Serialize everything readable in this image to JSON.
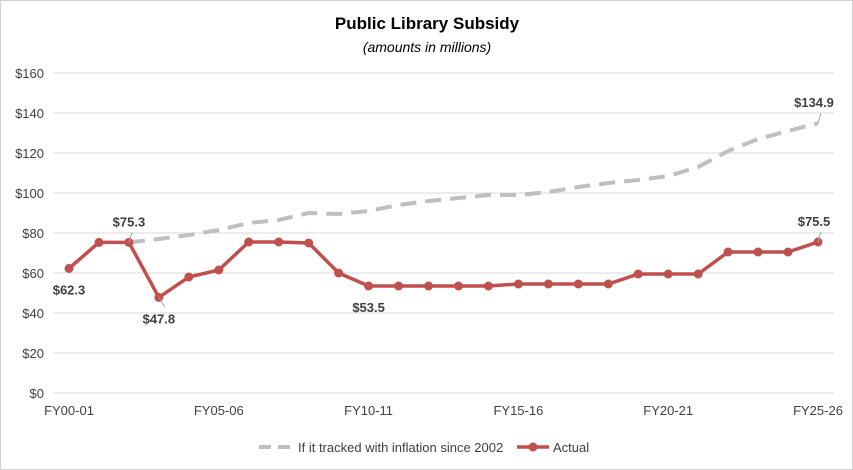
{
  "chart_data": {
    "type": "line",
    "title": "Public Library Subsidy",
    "subtitle": "(amounts in millions)",
    "xlabel": "",
    "ylabel": "",
    "ylim": [
      0,
      160
    ],
    "y_ticks": [
      "$0",
      "$20",
      "$40",
      "$60",
      "$80",
      "$100",
      "$120",
      "$140",
      "$160"
    ],
    "y_tick_values": [
      0,
      20,
      40,
      60,
      80,
      100,
      120,
      140,
      160
    ],
    "x_ticks": [
      {
        "index": 0,
        "label": "FY00-01"
      },
      {
        "index": 5,
        "label": "FY05-06"
      },
      {
        "index": 10,
        "label": "FY10-11"
      },
      {
        "index": 15,
        "label": "FY15-16"
      },
      {
        "index": 20,
        "label": "FY20-21"
      },
      {
        "index": 25,
        "label": "FY25-26"
      }
    ],
    "grid": true,
    "legend_position": "bottom",
    "series": [
      {
        "name": "If it tracked with inflation since 2002",
        "color": "#bfbfbf",
        "style": "dashed",
        "values": [
          null,
          null,
          75.3,
          77,
          79,
          81.5,
          85,
          86.5,
          90,
          89.5,
          91,
          94,
          96,
          97.5,
          99,
          99,
          100.5,
          103,
          105,
          106.5,
          108.5,
          113,
          121,
          127,
          131,
          134.9
        ]
      },
      {
        "name": "Actual",
        "color": "#c0504d",
        "style": "solid-markers",
        "values": [
          62.3,
          75.3,
          75.3,
          47.8,
          58,
          61.5,
          75.5,
          75.5,
          75,
          60,
          53.5,
          53.5,
          53.5,
          53.5,
          53.5,
          54.5,
          54.5,
          54.5,
          54.5,
          59.5,
          59.5,
          59.5,
          70.5,
          70.5,
          70.5,
          75.5
        ]
      }
    ],
    "annotations": [
      {
        "series": 1,
        "index": 0,
        "text": "$62.3",
        "pos": "below"
      },
      {
        "series": 1,
        "index": 2,
        "text": "$75.3",
        "pos": "above"
      },
      {
        "series": 1,
        "index": 3,
        "text": "$47.8",
        "pos": "below"
      },
      {
        "series": 1,
        "index": 10,
        "text": "$53.5",
        "pos": "below"
      },
      {
        "series": 1,
        "index": 25,
        "text": "$75.5",
        "pos": "above"
      },
      {
        "series": 0,
        "index": 25,
        "text": "$134.9",
        "pos": "above"
      }
    ]
  }
}
